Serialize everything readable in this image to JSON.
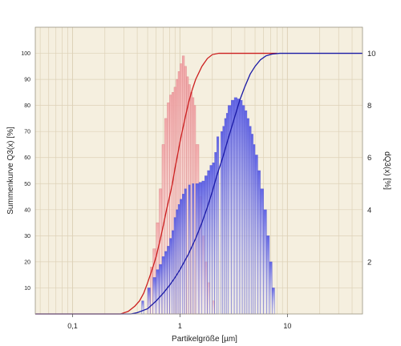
{
  "chart_data": {
    "type": "bar",
    "title": "",
    "xlabel": "Partikelgröße  [µm]",
    "ylabel": "Summenkurve  Q3(x)  [%]",
    "y2label": "dQ3(x)  [%]",
    "x_scale": "log",
    "xlim": [
      0.045,
      50
    ],
    "ylim": [
      0,
      110
    ],
    "y2lim": [
      0,
      11
    ],
    "x_ticks": [
      {
        "value": 0.1,
        "label": "0,1"
      },
      {
        "value": 1,
        "label": "1"
      },
      {
        "value": 10,
        "label": "10"
      }
    ],
    "y_ticks": [
      "10",
      "20",
      "30",
      "40",
      "50",
      "60",
      "70",
      "80",
      "90",
      "100"
    ],
    "y_tick_values": [
      10,
      20,
      30,
      40,
      50,
      60,
      70,
      80,
      90,
      100
    ],
    "y2_ticks": [
      "2",
      "4",
      "6",
      "8",
      "10"
    ],
    "y2_tick_values": [
      2,
      4,
      6,
      8,
      10
    ],
    "grid": true,
    "colors": {
      "background": "#f5efdf",
      "grid": "#ddd1b7",
      "series_red": "#cc1f1f",
      "series_red_fill": "#f2a6a8",
      "series_blue": "#1a1aa6",
      "series_blue_fill": "#5a5ee6"
    },
    "bar_edges": [
      0.28,
      0.3,
      0.32,
      0.34,
      0.36,
      0.38,
      0.4,
      0.42,
      0.44,
      0.46,
      0.48,
      0.5,
      0.53,
      0.56,
      0.6,
      0.64,
      0.68,
      0.72,
      0.76,
      0.8,
      0.84,
      0.88,
      0.92,
      0.96,
      1.0,
      1.05,
      1.1,
      1.15,
      1.2,
      1.25,
      1.3,
      1.35,
      1.4,
      1.5,
      1.6,
      1.7,
      1.8,
      1.9,
      2.0,
      2.1,
      2.2,
      2.3,
      2.4,
      2.5,
      2.6,
      2.7,
      2.8,
      3.0,
      3.2,
      3.4,
      3.6,
      3.8,
      4.0,
      4.2,
      4.4,
      4.6,
      4.8,
      5.0,
      5.3,
      5.6,
      6.0,
      6.4,
      6.8,
      7.2,
      7.6,
      8.0,
      8.5,
      9.0,
      9.5,
      10.0
    ],
    "series": [
      {
        "name": "",
        "color": "#cc1f1f",
        "cumulative": [
          [
            0.045,
            0
          ],
          [
            0.28,
            0
          ],
          [
            0.33,
            1
          ],
          [
            0.38,
            3
          ],
          [
            0.42,
            5
          ],
          [
            0.46,
            8
          ],
          [
            0.5,
            12
          ],
          [
            0.56,
            18
          ],
          [
            0.6,
            22
          ],
          [
            0.65,
            28
          ],
          [
            0.7,
            34
          ],
          [
            0.75,
            40
          ],
          [
            0.8,
            45
          ],
          [
            0.85,
            50
          ],
          [
            0.9,
            56
          ],
          [
            0.95,
            61
          ],
          [
            1.0,
            66
          ],
          [
            1.1,
            74
          ],
          [
            1.2,
            81
          ],
          [
            1.3,
            86
          ],
          [
            1.4,
            90
          ],
          [
            1.6,
            95
          ],
          [
            1.8,
            98
          ],
          [
            2.0,
            99.5
          ],
          [
            2.3,
            100
          ],
          [
            3.0,
            100
          ],
          [
            8.0,
            100
          ]
        ],
        "density": [
          [
            0.5,
            1
          ],
          [
            0.53,
            1.8
          ],
          [
            0.56,
            2.5
          ],
          [
            0.6,
            3.5
          ],
          [
            0.64,
            4.8
          ],
          [
            0.68,
            6.5
          ],
          [
            0.72,
            7.5
          ],
          [
            0.76,
            8.1
          ],
          [
            0.8,
            8.4
          ],
          [
            0.84,
            8.5
          ],
          [
            0.88,
            8.7
          ],
          [
            0.92,
            9.0
          ],
          [
            0.96,
            9.3
          ],
          [
            1.0,
            9.6
          ],
          [
            1.05,
            9.9
          ],
          [
            1.1,
            9.5
          ],
          [
            1.15,
            9.1
          ],
          [
            1.2,
            8.8
          ],
          [
            1.25,
            8.5
          ],
          [
            1.3,
            8.3
          ],
          [
            1.35,
            8.0
          ],
          [
            1.4,
            6.5
          ],
          [
            1.5,
            4.5
          ],
          [
            1.6,
            3.0
          ],
          [
            1.7,
            2.0
          ],
          [
            1.8,
            1.2
          ],
          [
            2.0,
            0.5
          ]
        ]
      },
      {
        "name": "",
        "color": "#1a1aa6",
        "cumulative": [
          [
            0.045,
            0
          ],
          [
            0.35,
            0
          ],
          [
            0.4,
            0.5
          ],
          [
            0.5,
            2
          ],
          [
            0.6,
            5
          ],
          [
            0.7,
            8
          ],
          [
            0.8,
            11
          ],
          [
            0.9,
            14
          ],
          [
            1.0,
            17
          ],
          [
            1.2,
            23
          ],
          [
            1.4,
            29
          ],
          [
            1.6,
            35
          ],
          [
            1.8,
            41
          ],
          [
            2.0,
            47
          ],
          [
            2.2,
            53
          ],
          [
            2.5,
            60
          ],
          [
            2.8,
            67
          ],
          [
            3.2,
            75
          ],
          [
            3.6,
            82
          ],
          [
            4.0,
            87
          ],
          [
            4.5,
            92
          ],
          [
            5.0,
            95
          ],
          [
            5.6,
            97.5
          ],
          [
            6.3,
            99
          ],
          [
            7.2,
            99.7
          ],
          [
            8.5,
            100
          ],
          [
            10.0,
            100
          ],
          [
            50.0,
            100
          ]
        ],
        "density": [
          [
            0.44,
            0.5
          ],
          [
            0.5,
            1.0
          ],
          [
            0.56,
            1.4
          ],
          [
            0.6,
            1.7
          ],
          [
            0.64,
            1.9
          ],
          [
            0.68,
            2.2
          ],
          [
            0.72,
            2.4
          ],
          [
            0.76,
            2.6
          ],
          [
            0.8,
            2.9
          ],
          [
            0.84,
            3.2
          ],
          [
            0.88,
            3.7
          ],
          [
            0.92,
            4.0
          ],
          [
            0.96,
            4.2
          ],
          [
            1.0,
            4.4
          ],
          [
            1.05,
            4.6
          ],
          [
            1.1,
            4.8
          ],
          [
            1.2,
            4.95
          ],
          [
            1.3,
            5.0
          ],
          [
            1.4,
            5.0
          ],
          [
            1.5,
            5.05
          ],
          [
            1.6,
            5.1
          ],
          [
            1.7,
            5.3
          ],
          [
            1.8,
            5.5
          ],
          [
            1.9,
            5.7
          ],
          [
            2.0,
            5.8
          ],
          [
            2.1,
            6.2
          ],
          [
            2.2,
            6.8
          ],
          [
            2.4,
            7.0
          ],
          [
            2.5,
            7.2
          ],
          [
            2.6,
            7.5
          ],
          [
            2.7,
            7.7
          ],
          [
            2.8,
            8.0
          ],
          [
            3.0,
            8.2
          ],
          [
            3.2,
            8.3
          ],
          [
            3.4,
            8.25
          ],
          [
            3.6,
            8.2
          ],
          [
            3.8,
            8.0
          ],
          [
            4.0,
            7.8
          ],
          [
            4.2,
            7.5
          ],
          [
            4.4,
            7.2
          ],
          [
            4.6,
            6.9
          ],
          [
            4.8,
            6.5
          ],
          [
            5.0,
            6.1
          ],
          [
            5.3,
            5.5
          ],
          [
            5.6,
            4.8
          ],
          [
            6.0,
            4.0
          ],
          [
            6.4,
            3.0
          ],
          [
            6.8,
            2.0
          ],
          [
            7.2,
            1.0
          ]
        ]
      }
    ]
  }
}
